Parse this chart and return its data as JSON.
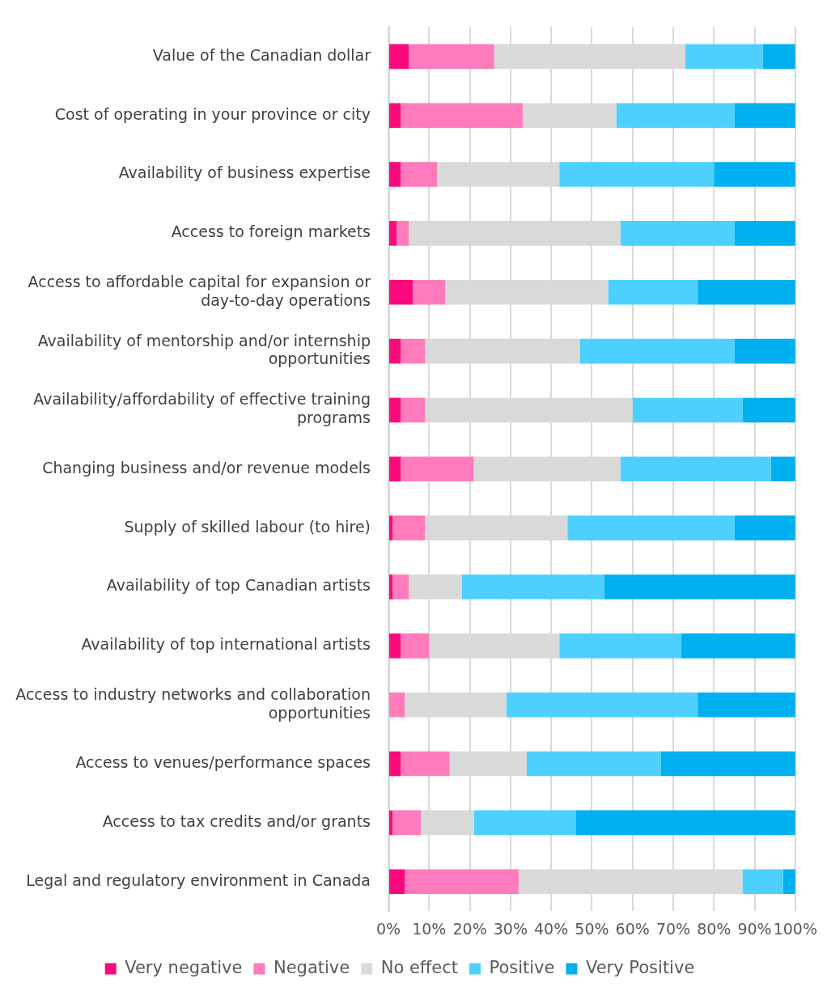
{
  "chart_data": {
    "type": "bar",
    "orientation": "horizontal",
    "stacked": true,
    "categories": [
      "Value of the Canadian dollar",
      "Cost of operating in your province or city",
      "Availability of business expertise",
      "Access to foreign markets",
      "Access to affordable capital for expansion or day-to-day operations",
      "Availability of mentorship and/or internship opportunities",
      "Availability/affordability of effective training programs",
      "Changing business and/or revenue models",
      "Supply of skilled labour (to hire)",
      "Availability of top Canadian artists",
      "Availability of top international artists",
      "Access to industry networks and collaboration opportunities",
      "Access to venues/performance spaces",
      "Access to tax credits and/or grants",
      "Legal and regulatory environment in Canada"
    ],
    "series": [
      {
        "name": "Very negative",
        "color": "#fa0a7c",
        "values": [
          5,
          3,
          3,
          2,
          6,
          3,
          3,
          3,
          1,
          1,
          3,
          0,
          3,
          1,
          4
        ]
      },
      {
        "name": "Negative",
        "color": "#ff7bbb",
        "values": [
          21,
          30,
          9,
          3,
          8,
          6,
          6,
          18,
          8,
          4,
          7,
          4,
          12,
          7,
          28
        ]
      },
      {
        "name": "No effect",
        "color": "#d9d9d9",
        "values": [
          47,
          23,
          30,
          52,
          40,
          38,
          51,
          36,
          35,
          13,
          32,
          25,
          19,
          13,
          55
        ]
      },
      {
        "name": "Positive",
        "color": "#4dcfff",
        "values": [
          19,
          29,
          38,
          28,
          22,
          38,
          27,
          37,
          41,
          35,
          30,
          47,
          33,
          25,
          10
        ]
      },
      {
        "name": "Very Positive",
        "color": "#00b0f0",
        "values": [
          8,
          15,
          20,
          15,
          24,
          15,
          13,
          6,
          15,
          47,
          28,
          24,
          33,
          54,
          3
        ]
      }
    ],
    "xlim": [
      0,
      100
    ],
    "xticks": [
      {
        "value": 0,
        "label": "0%"
      },
      {
        "value": 10,
        "label": "10%"
      },
      {
        "value": 20,
        "label": "20%"
      },
      {
        "value": 30,
        "label": "30%"
      },
      {
        "value": 40,
        "label": "40%"
      },
      {
        "value": 50,
        "label": "50%"
      },
      {
        "value": 60,
        "label": "60%"
      },
      {
        "value": 70,
        "label": "70%"
      },
      {
        "value": 80,
        "label": "80%"
      },
      {
        "value": 90,
        "label": "90%"
      },
      {
        "value": 100,
        "label": "100%"
      }
    ],
    "grid": "x",
    "legend": "bottom"
  }
}
